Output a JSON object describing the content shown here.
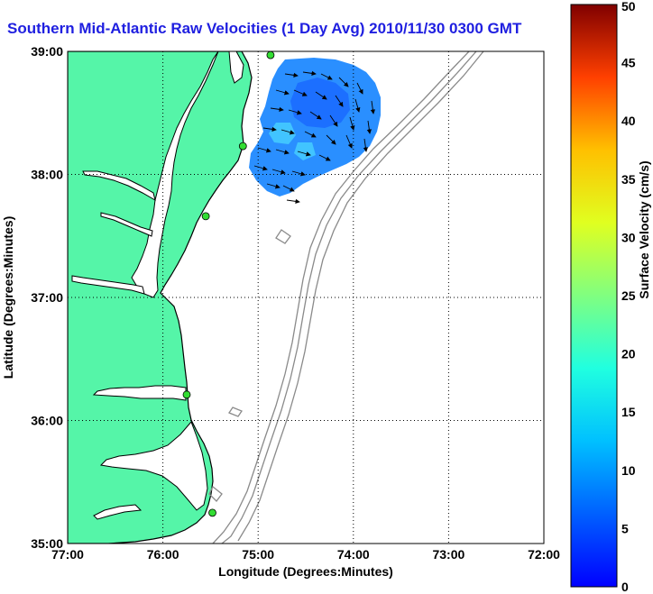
{
  "title": "Southern Mid-Atlantic Raw Velocities (1 Day Avg) 2010/11/30 0300 GMT",
  "x_axis": {
    "label": "Longitude (Degrees:Minutes)",
    "ticks": [
      "77:00",
      "76:00",
      "75:00",
      "74:00",
      "73:00",
      "72:00"
    ]
  },
  "y_axis": {
    "label": "Latitude (Degrees:Minutes)",
    "ticks": [
      "39:00",
      "38:00",
      "37:00",
      "36:00",
      "35:00"
    ]
  },
  "colorbar": {
    "label": "Surface Velocity (cm/s)",
    "ticks": [
      "0",
      "5",
      "10",
      "15",
      "20",
      "25",
      "30",
      "35",
      "40",
      "45",
      "50"
    ],
    "min": 0,
    "max": 50,
    "colormap": "jet"
  },
  "map_extent": {
    "lon_west": -77,
    "lon_east": -72,
    "lat_south": 35,
    "lat_north": 39
  },
  "colors": {
    "land": "#55f5a8",
    "ocean": "#ffffff",
    "isobath": "#8a8a8a",
    "coast": "#000000",
    "title": "#1f1fe0",
    "station": "#33dd33"
  },
  "grid": "dotted",
  "stations": [
    {
      "lon": -74.87,
      "lat": 38.97
    },
    {
      "lon": -75.16,
      "lat": 38.23
    },
    {
      "lon": -75.55,
      "lat": 37.66
    },
    {
      "lon": -75.75,
      "lat": 36.21
    },
    {
      "lon": -75.48,
      "lat": 35.25
    }
  ]
}
